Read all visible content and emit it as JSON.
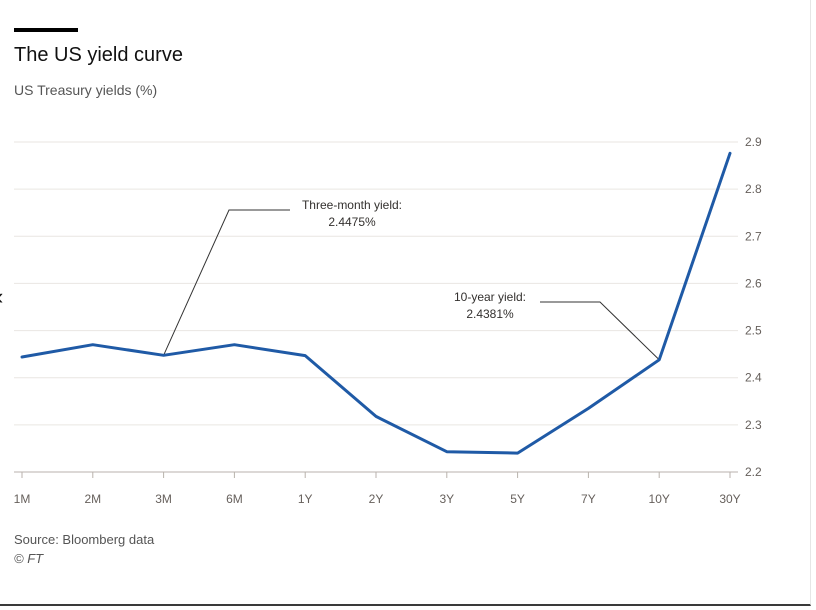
{
  "header": {
    "title": "The US yield curve",
    "subtitle": "US Treasury yields (%)"
  },
  "footer": {
    "source": "Source: Bloomberg data",
    "copyright": "© FT"
  },
  "nav": {
    "back_glyph": "‹"
  },
  "colors": {
    "line": "#1f5aa6",
    "grid": "#e9e6e2",
    "annotation": "#333333"
  },
  "chart_data": {
    "type": "line",
    "title": "The US yield curve",
    "subtitle": "US Treasury yields (%)",
    "categories": [
      "1M",
      "2M",
      "3M",
      "6M",
      "1Y",
      "2Y",
      "3Y",
      "5Y",
      "7Y",
      "10Y",
      "30Y"
    ],
    "series": [
      {
        "values": [
          2.444,
          2.47,
          2.4475,
          2.47,
          2.447,
          2.318,
          2.243,
          2.24,
          2.335,
          2.4381,
          2.876
        ]
      }
    ],
    "ylim": [
      2.2,
      2.9
    ],
    "yticks": [
      2.2,
      2.3,
      2.4,
      2.5,
      2.6,
      2.7,
      2.8,
      2.9
    ],
    "ytick_labels": [
      "2.2",
      "2.3",
      "2.4",
      "2.5",
      "2.6",
      "2.7",
      "2.8",
      "2.9"
    ],
    "y_axis_position": "right",
    "grid": true,
    "annotations": [
      {
        "category": "3M",
        "value": 2.4475,
        "line1": "Three-month yield:",
        "line2": "2.4475%"
      },
      {
        "category": "10Y",
        "value": 2.4381,
        "line1": "10-year yield:",
        "line2": "2.4381%"
      }
    ]
  }
}
